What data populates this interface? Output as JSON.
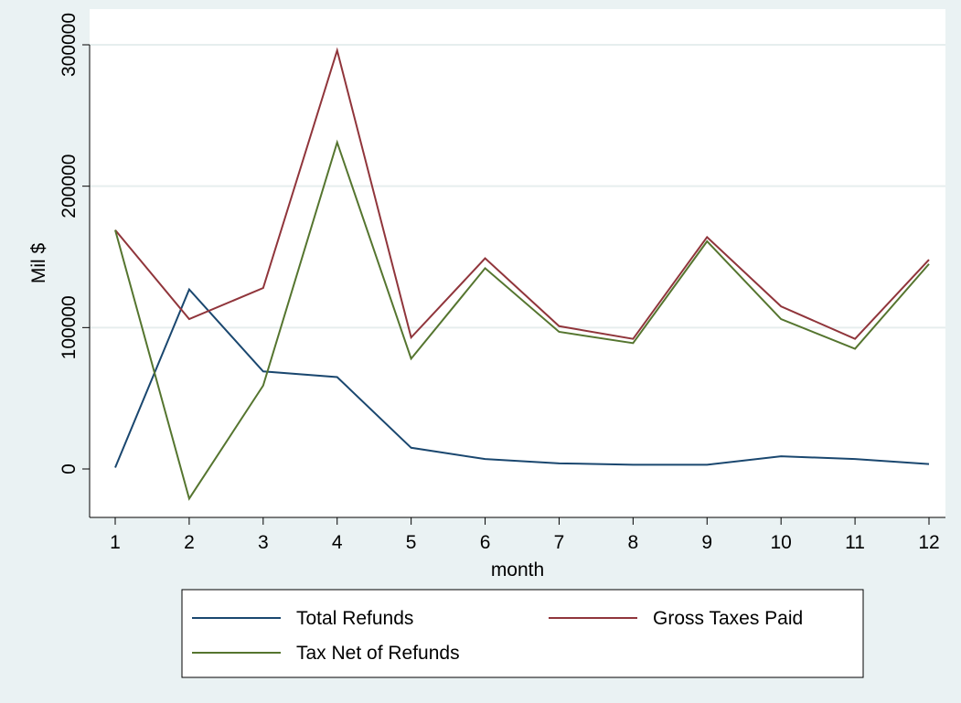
{
  "chart_data": {
    "type": "line",
    "title": "",
    "xlabel": "month",
    "ylabel": "Mil $",
    "x": [
      1,
      2,
      3,
      4,
      5,
      6,
      7,
      8,
      9,
      10,
      11,
      12
    ],
    "xlim": [
      1,
      12
    ],
    "ylim": [
      -30000,
      300000
    ],
    "yticks": [
      0,
      100000,
      200000,
      300000
    ],
    "grid": true,
    "legend_position": "bottom",
    "series": [
      {
        "name": "Total Refunds",
        "color": "#1a476f",
        "values": [
          1000,
          127000,
          69000,
          65000,
          15000,
          7000,
          4000,
          3000,
          3000,
          9000,
          7000,
          3500
        ]
      },
      {
        "name": "Gross Taxes Paid",
        "color": "#90353b",
        "values": [
          169000,
          106000,
          128000,
          296000,
          93000,
          149000,
          101000,
          92000,
          164000,
          115000,
          92000,
          148000
        ]
      },
      {
        "name": "Tax Net of Refunds",
        "color": "#55752f",
        "values": [
          169000,
          -21000,
          59000,
          231000,
          78000,
          142000,
          97000,
          89000,
          161000,
          106000,
          85000,
          145000
        ]
      }
    ]
  }
}
